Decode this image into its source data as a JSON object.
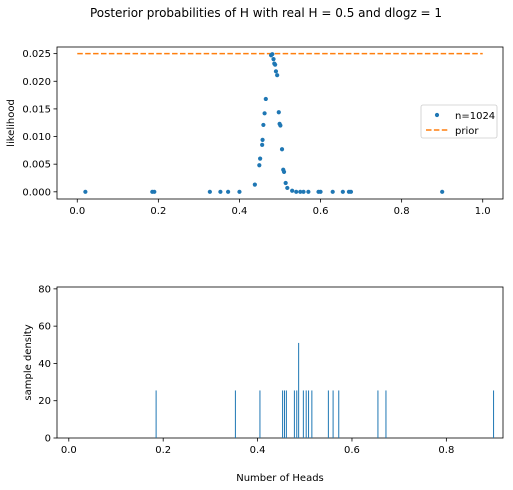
{
  "figure": {
    "suptitle": "Posterior probabilities of H with real H = 0.5 and dlogz = 1"
  },
  "colors": {
    "series_blue": "#1f77b4",
    "prior_orange": "#ff7f0e",
    "axis": "#000000",
    "background": "#ffffff"
  },
  "chart_data": [
    {
      "type": "scatter",
      "title": "",
      "xlabel": "",
      "ylabel": "likelihood",
      "xlim": [
        -0.05,
        1.05
      ],
      "ylim": [
        -0.0013,
        0.0262
      ],
      "grid": false,
      "legend_position": "center-right",
      "x_ticks": [
        "0.0",
        "0.2",
        "0.4",
        "0.6",
        "0.8",
        "1.0"
      ],
      "y_ticks": [
        "0.000",
        "0.005",
        "0.010",
        "0.015",
        "0.020",
        "0.025"
      ],
      "series": [
        {
          "name": "n=1024",
          "kind": "points",
          "points": [
            [
              0.02,
              0.0
            ],
            [
              0.185,
              0.0
            ],
            [
              0.19,
              0.0
            ],
            [
              0.327,
              0.0
            ],
            [
              0.353,
              0.0
            ],
            [
              0.372,
              0.0
            ],
            [
              0.4,
              0.0
            ],
            [
              0.438,
              0.0013
            ],
            [
              0.449,
              0.0048
            ],
            [
              0.451,
              0.006
            ],
            [
              0.456,
              0.0085
            ],
            [
              0.457,
              0.0094
            ],
            [
              0.459,
              0.0121
            ],
            [
              0.462,
              0.0142
            ],
            [
              0.465,
              0.0168
            ],
            [
              0.478,
              0.0247
            ],
            [
              0.481,
              0.0249
            ],
            [
              0.484,
              0.024
            ],
            [
              0.486,
              0.0232
            ],
            [
              0.488,
              0.023
            ],
            [
              0.49,
              0.0218
            ],
            [
              0.493,
              0.0211
            ],
            [
              0.497,
              0.0144
            ],
            [
              0.499,
              0.0123
            ],
            [
              0.501,
              0.012
            ],
            [
              0.505,
              0.0077
            ],
            [
              0.508,
              0.004
            ],
            [
              0.51,
              0.0036
            ],
            [
              0.514,
              0.0016
            ],
            [
              0.518,
              0.0007
            ],
            [
              0.53,
              0.0002
            ],
            [
              0.54,
              0.0
            ],
            [
              0.55,
              0.0
            ],
            [
              0.558,
              0.0
            ],
            [
              0.57,
              0.0
            ],
            [
              0.595,
              0.0
            ],
            [
              0.6,
              0.0
            ],
            [
              0.63,
              0.0
            ],
            [
              0.655,
              0.0
            ],
            [
              0.67,
              0.0
            ],
            [
              0.675,
              0.0
            ],
            [
              0.9,
              0.0
            ]
          ]
        },
        {
          "name": "prior",
          "kind": "dashed-line",
          "x": [
            0.0,
            1.0
          ],
          "y": [
            0.025,
            0.025
          ]
        }
      ]
    },
    {
      "type": "bar",
      "title": "",
      "xlabel": "Number of Heads",
      "ylabel": "sample density",
      "xlim": [
        -0.025,
        0.92
      ],
      "ylim": [
        0,
        81
      ],
      "grid": false,
      "x_ticks": [
        "0.0",
        "0.2",
        "0.4",
        "0.6",
        "0.8"
      ],
      "y_ticks": [
        "0",
        "20",
        "40",
        "60",
        "80"
      ],
      "bars": [
        [
          0.185,
          25.5
        ],
        [
          0.353,
          25.5
        ],
        [
          0.405,
          25.5
        ],
        [
          0.453,
          25.5
        ],
        [
          0.457,
          25.5
        ],
        [
          0.461,
          25.5
        ],
        [
          0.478,
          25.5
        ],
        [
          0.483,
          25.5
        ],
        [
          0.487,
          51
        ],
        [
          0.497,
          25.5
        ],
        [
          0.503,
          25.5
        ],
        [
          0.508,
          25.5
        ],
        [
          0.515,
          25.5
        ],
        [
          0.55,
          25.5
        ],
        [
          0.56,
          25.5
        ],
        [
          0.572,
          25.5
        ],
        [
          0.655,
          25.5
        ],
        [
          0.672,
          25.5
        ],
        [
          0.9,
          25.5
        ]
      ]
    }
  ]
}
